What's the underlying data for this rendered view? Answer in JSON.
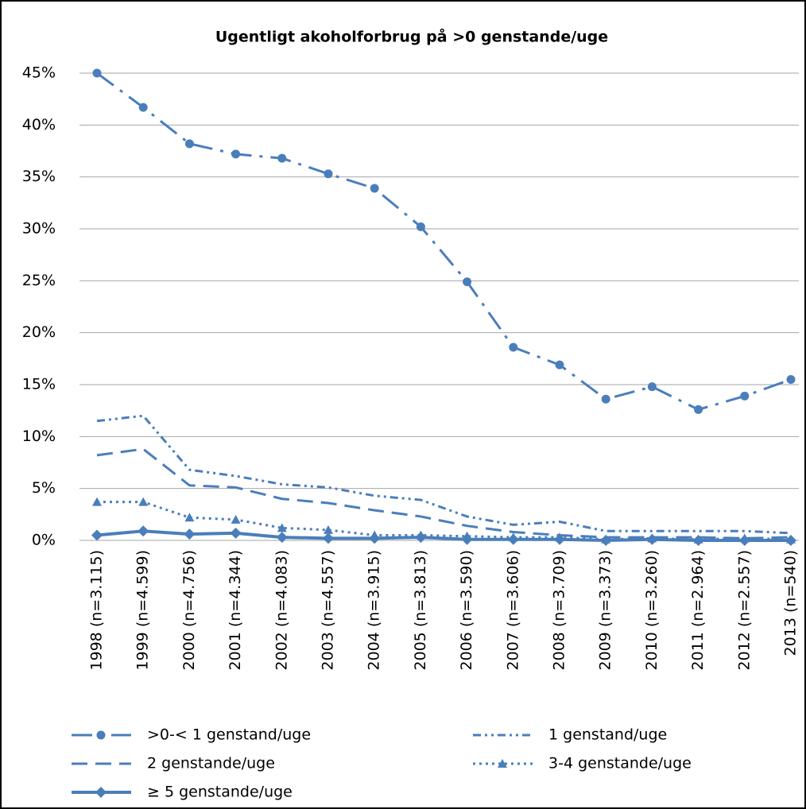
{
  "chart_data": {
    "type": "line",
    "title": "Ugentligt akoholforbrug på >0 genstande/uge",
    "categories": [
      "1998 (n=3.115)",
      "1999 (n=4.599)",
      "2000 (n=4.756)",
      "2001 (n=4.344)",
      "2002 (n=4.083)",
      "2003 (n=4.557)",
      "2004 (n=3.915)",
      "2005 (n=3.813)",
      "2006 (n=3.590)",
      "2007 (n=3.606)",
      "2008 (n=3.709)",
      "2009 (n=3.373)",
      "2010 (n=3.260)",
      "2011 (n=2.964)",
      "2012 (n=2.557)",
      "2013 (n=540)"
    ],
    "series": [
      {
        "name": ">0-< 1 genstand/uge",
        "color": "#4a7ebb",
        "dash": "longdashdot",
        "marker": "circle",
        "values": [
          45.0,
          41.7,
          38.2,
          37.2,
          36.8,
          35.3,
          33.9,
          30.2,
          24.9,
          18.6,
          16.9,
          13.6,
          14.8,
          12.6,
          13.9,
          15.5
        ]
      },
      {
        "name": "1 genstand/uge",
        "color": "#4a7ebb",
        "dash": "dashdotdot",
        "marker": "none",
        "values": [
          11.5,
          12.0,
          6.8,
          6.2,
          5.4,
          5.1,
          4.3,
          3.9,
          2.3,
          1.5,
          1.8,
          0.9,
          0.9,
          0.9,
          0.9,
          0.7
        ]
      },
      {
        "name": "2 genstande/uge",
        "color": "#4a7ebb",
        "dash": "dash",
        "marker": "none",
        "values": [
          8.2,
          8.8,
          5.3,
          5.1,
          4.0,
          3.6,
          2.9,
          2.3,
          1.4,
          0.8,
          0.5,
          0.3,
          0.3,
          0.3,
          0.2,
          0.3
        ]
      },
      {
        "name": "3-4 genstande/uge",
        "color": "#4a7ebb",
        "dash": "dot",
        "marker": "triangle",
        "values": [
          3.7,
          3.7,
          2.2,
          2.0,
          1.2,
          1.0,
          0.5,
          0.5,
          0.4,
          0.3,
          0.3,
          0.1,
          0.2,
          0.1,
          0.2,
          0.1
        ]
      },
      {
        "name": "≥ 5 genstande/uge",
        "color": "#4a7ebb",
        "dash": "solid",
        "marker": "diamond",
        "values": [
          0.5,
          0.9,
          0.6,
          0.7,
          0.3,
          0.2,
          0.2,
          0.3,
          0.1,
          0.1,
          0.1,
          0.0,
          0.1,
          0.0,
          0.0,
          0.0
        ]
      }
    ],
    "ylim": [
      0,
      45
    ],
    "yticks": [
      {
        "value": 0,
        "label": "0%"
      },
      {
        "value": 5,
        "label": "5%"
      },
      {
        "value": 10,
        "label": "10%"
      },
      {
        "value": 15,
        "label": "15%"
      },
      {
        "value": 20,
        "label": "20%"
      },
      {
        "value": 25,
        "label": "25%"
      },
      {
        "value": 30,
        "label": "30%"
      },
      {
        "value": 35,
        "label": "35%"
      },
      {
        "value": 40,
        "label": "40%"
      },
      {
        "value": 45,
        "label": "45%"
      }
    ],
    "grid": true
  }
}
